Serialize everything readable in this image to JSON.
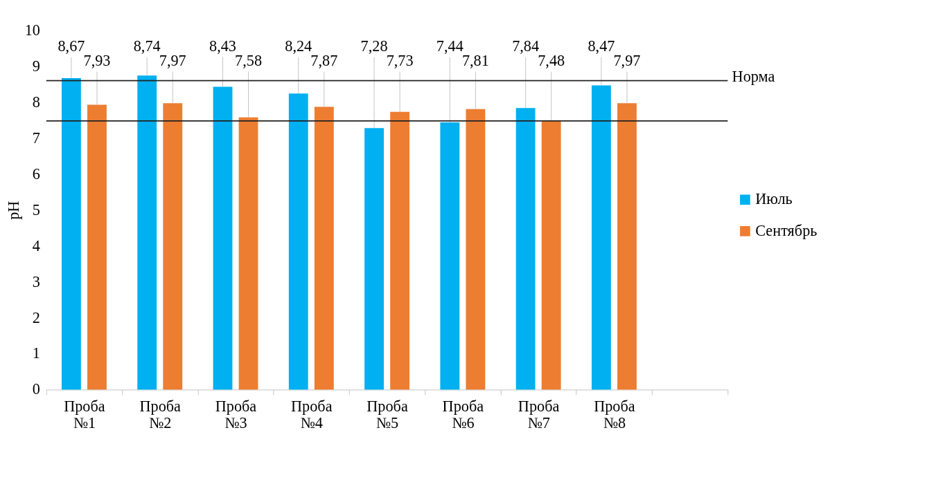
{
  "chart_data": {
    "type": "bar",
    "categories": [
      "Проба №1",
      "Проба №2",
      "Проба №3",
      "Проба №4",
      "Проба №5",
      "Проба №6",
      "Проба №7",
      "Проба №8",
      null
    ],
    "series": [
      {
        "name": "Июль",
        "color": "#00b0f0",
        "values": [
          8.67,
          8.74,
          8.43,
          8.24,
          7.28,
          7.44,
          7.84,
          8.47,
          null
        ],
        "value_labels": [
          "8,67",
          "8,74",
          "8,43",
          "8,24",
          "7,28",
          "7,44",
          "7,84",
          "8,47",
          null
        ]
      },
      {
        "name": "Сентябрь",
        "color": "#ed7d31",
        "values": [
          7.93,
          7.97,
          7.58,
          7.87,
          7.73,
          7.81,
          7.48,
          7.97,
          null
        ],
        "value_labels": [
          "7,93",
          "7,97",
          "7,58",
          "7,87",
          "7,73",
          "7,81",
          "7,48",
          "7,97",
          null
        ]
      }
    ],
    "ylabel": "pH",
    "ylim": [
      0,
      10
    ],
    "yticks": [
      0,
      1,
      2,
      3,
      4,
      5,
      6,
      7,
      8,
      9,
      10
    ],
    "ref_lines": [
      {
        "axis": "y",
        "value": 8.6,
        "label": null,
        "color": "#222222"
      },
      {
        "axis": "y",
        "value": 7.48,
        "label": null,
        "color": "#222222"
      }
    ],
    "annotations": [
      "Норма"
    ],
    "grid": false,
    "legend": "right"
  }
}
